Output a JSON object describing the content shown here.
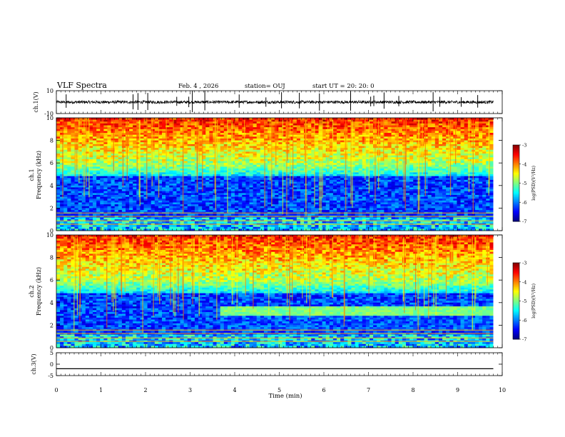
{
  "header": {
    "title": "VLF Spectra",
    "date": "Feb. 4 , 2026",
    "station": "station= OUJ",
    "start": "start UT =  20: 20: 0"
  },
  "chart_data": [
    {
      "type": "line",
      "ylabel": "ch.1(V)",
      "ylim": [
        -10,
        10
      ],
      "yticks": [
        "10",
        "-10"
      ],
      "baseline": 0,
      "spikes_min": [
        0.22,
        1.72,
        1.83,
        2.05,
        2.7,
        2.97,
        3.05,
        3.33,
        4.1,
        4.7,
        5.05,
        5.45,
        5.9,
        6.6,
        7.05,
        7.12,
        7.35,
        7.68,
        8.45,
        8.6,
        9.08,
        9.45
      ]
    },
    {
      "type": "heatmap",
      "ylabel": "ch.1\nFrequency  (kHz)",
      "ylim": [
        0,
        10
      ],
      "yticks": [
        "0",
        "2",
        "4",
        "6",
        "8",
        "10"
      ],
      "xlim": [
        0,
        10
      ],
      "colorbar": {
        "ticks": [
          "-3",
          "-4",
          "-5",
          "-6",
          "-7"
        ],
        "range": [
          -7,
          -3
        ],
        "label": "log(PSD)(V²/Hz)"
      }
    },
    {
      "type": "heatmap",
      "ylabel": "ch.2\nFrequency  (kHz)",
      "ylim": [
        0,
        10
      ],
      "yticks": [
        "0",
        "2",
        "4",
        "6",
        "8",
        "10"
      ],
      "xlim": [
        0,
        10
      ],
      "colorbar": {
        "ticks": [
          "-3",
          "-4",
          "-5",
          "-6",
          "-7"
        ],
        "range": [
          -7,
          -3
        ],
        "label": "log(PSD)(V²/Hz)"
      }
    },
    {
      "type": "line",
      "ylabel": "ch.3(V)",
      "ylim": [
        -5,
        5
      ],
      "yticks": [
        "5",
        "0",
        "-5"
      ],
      "value": -2
    }
  ],
  "xaxis": {
    "label": "Time  (min)",
    "ticks": [
      "0",
      "1",
      "2",
      "3",
      "4",
      "5",
      "6",
      "7",
      "8",
      "9",
      "10"
    ],
    "range": [
      0,
      10
    ]
  },
  "colors": {
    "axis": "#000000",
    "trace": "#000000"
  }
}
